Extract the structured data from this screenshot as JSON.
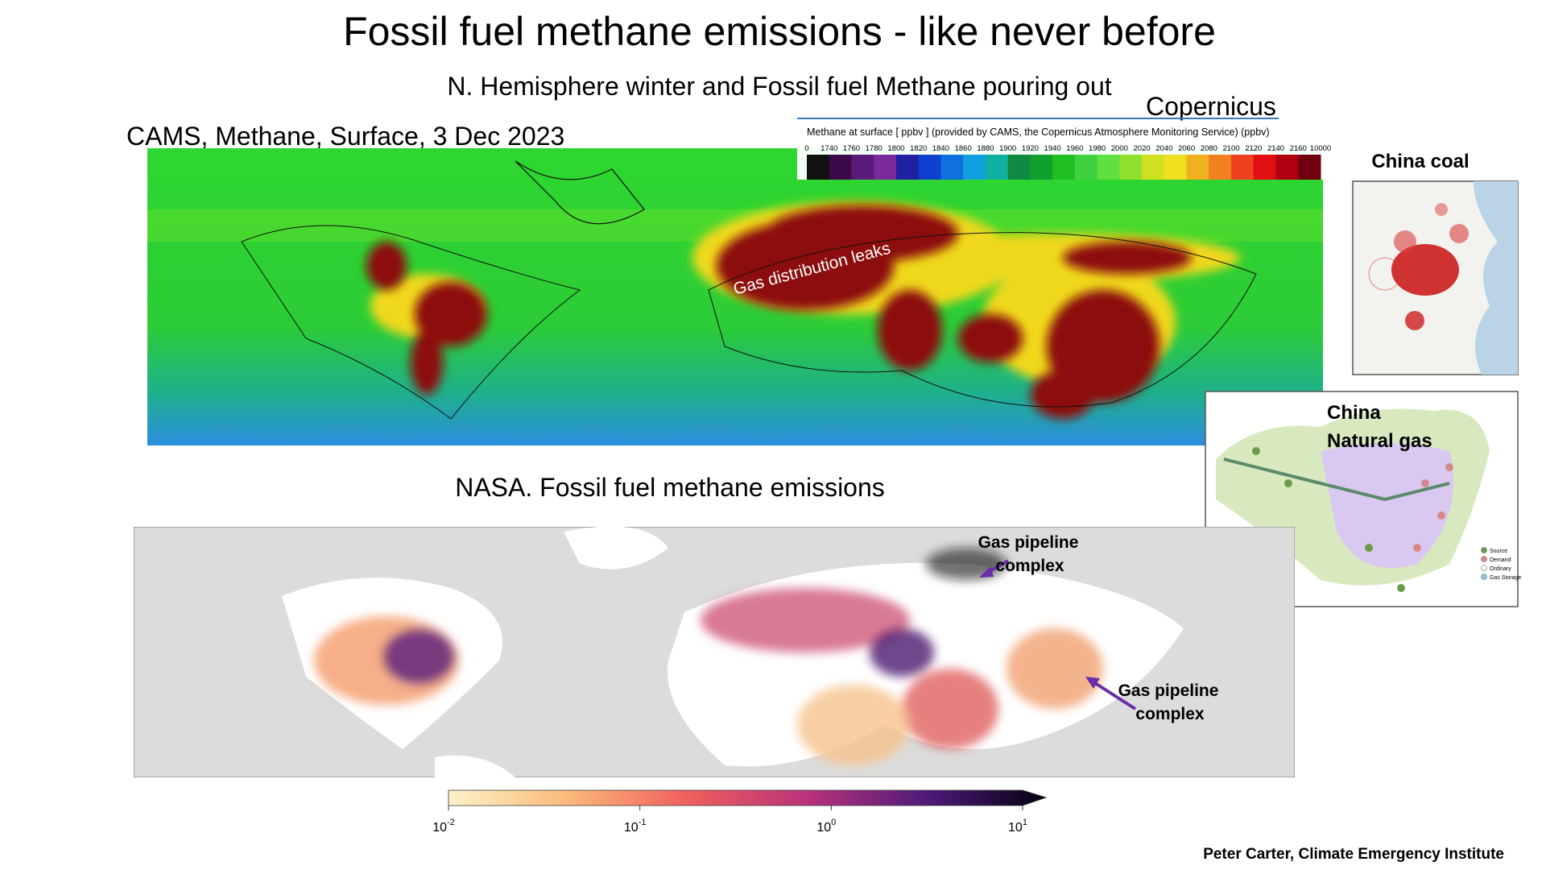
{
  "slide": {
    "title": "Fossil fuel methane emissions - like never before",
    "subtitle": "N. Hemisphere winter and Fossil fuel Methane pouring out",
    "copernicus": "Copernicus",
    "cams_label": "CAMS, Methane, Surface, 3 Dec 2023",
    "cams_colorbar": {
      "title": "Methane at surface [ ppbv ] (provided by CAMS, the Copernicus Atmosphere Monitoring Service) (ppbv)",
      "ticks": [
        0,
        1740,
        1760,
        1780,
        1800,
        1820,
        1840,
        1860,
        1880,
        1900,
        1920,
        1940,
        1960,
        1980,
        2000,
        2020,
        2040,
        2060,
        2080,
        2100,
        2120,
        2140,
        2160,
        10000
      ]
    },
    "cams_annotation": "Gas distribution leaks",
    "china_coal": "China coal",
    "china_gas": {
      "line1": "China",
      "line2": "Natural gas",
      "legend": [
        "Source",
        "Demand",
        "Ordinary",
        "Gas Storage"
      ]
    },
    "nasa_label": "NASA. Fossil fuel methane emissions",
    "nasa_annotations": [
      {
        "line1": "Gas pipeline",
        "line2": "complex"
      },
      {
        "line1": "Gas pipeline",
        "line2": "complex"
      }
    ],
    "nasa_colorbar": {
      "log_scale": true,
      "ticks": [
        {
          "value": 0.01,
          "label": "10",
          "exponent": -2
        },
        {
          "value": 0.1,
          "label": "10",
          "exponent": -1
        },
        {
          "value": 1,
          "label": "10",
          "exponent": 0
        },
        {
          "value": 10,
          "label": "10",
          "exponent": 1
        }
      ]
    },
    "credit": "Peter Carter, Climate Emergency Institute"
  }
}
